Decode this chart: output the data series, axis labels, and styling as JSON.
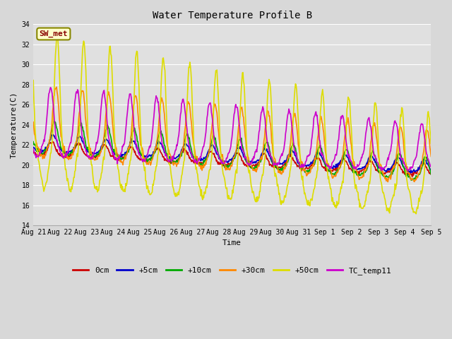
{
  "title": "Water Temperature Profile B",
  "xlabel": "Time",
  "ylabel": "Temperature(C)",
  "ylim": [
    14,
    34
  ],
  "yticks": [
    14,
    16,
    18,
    20,
    22,
    24,
    26,
    28,
    30,
    32,
    34
  ],
  "bg_color": "#d8d8d8",
  "plot_bg_color": "#e0e0e0",
  "annotation_text": "SW_met",
  "annotation_bg": "#ffffcc",
  "annotation_edge": "#888800",
  "annotation_text_color": "#880000",
  "lines": {
    "0cm": {
      "color": "#cc0000",
      "lw": 1.2
    },
    "+5cm": {
      "color": "#0000cc",
      "lw": 1.2
    },
    "+10cm": {
      "color": "#00aa00",
      "lw": 1.2
    },
    "+30cm": {
      "color": "#ff8800",
      "lw": 1.2
    },
    "+50cm": {
      "color": "#dddd00",
      "lw": 1.2
    },
    "TC_temp11": {
      "color": "#cc00cc",
      "lw": 1.2
    }
  },
  "legend_order": [
    "0cm",
    "+5cm",
    "+10cm",
    "+30cm",
    "+50cm",
    "TC_temp11"
  ]
}
